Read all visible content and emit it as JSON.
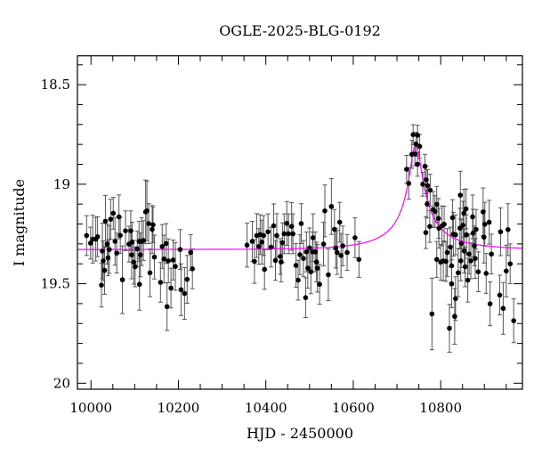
{
  "chart_data": {
    "type": "scatter",
    "title": "OGLE-2025-BLG-0192",
    "xlabel": "HJD - 2450000",
    "ylabel": "I magnitude",
    "xlim": [
      9969,
      10987
    ],
    "ylim": [
      20.03,
      18.355
    ],
    "y_inverted": true,
    "x_ticks": [
      10000,
      10200,
      10400,
      10600,
      10800
    ],
    "x_tick_labels": [
      "10000",
      "10200",
      "10400",
      "10600",
      "10800"
    ],
    "y_ticks": [
      18.5,
      19,
      19.5,
      20
    ],
    "y_tick_labels": [
      "18.5",
      "19",
      "19.5",
      "20"
    ],
    "grid": false,
    "colors": {
      "points": "#000000",
      "errorbars": "#555555",
      "model": "#ff00ff"
    },
    "model": {
      "t0": 10743,
      "u0": 0.1,
      "tE": 137,
      "fs": 0.0694,
      "base_mag": 19.328
    },
    "points": [
      [
        9990,
        19.258,
        0.1
      ],
      [
        9999,
        19.296,
        0.08
      ],
      [
        10004,
        19.276,
        0.12
      ],
      [
        10011,
        19.276,
        0.11
      ],
      [
        10015,
        19.264,
        0.1
      ],
      [
        10024,
        19.507,
        0.11
      ],
      [
        10026,
        19.336,
        0.14
      ],
      [
        10028,
        19.385,
        0.1
      ],
      [
        10031,
        19.433,
        0.12
      ],
      [
        10033,
        19.186,
        0.13
      ],
      [
        10037,
        19.301,
        0.1
      ],
      [
        10039,
        19.37,
        0.09
      ],
      [
        10042,
        19.328,
        0.12
      ],
      [
        10045,
        19.176,
        0.1
      ],
      [
        10051,
        19.146,
        0.08
      ],
      [
        10055,
        19.287,
        0.12
      ],
      [
        10059,
        19.346,
        0.1
      ],
      [
        10064,
        19.164,
        0.11
      ],
      [
        10067,
        19.257,
        0.09
      ],
      [
        10072,
        19.48,
        0.17
      ],
      [
        10079,
        19.234,
        0.1
      ],
      [
        10087,
        19.301,
        0.09
      ],
      [
        10091,
        19.234,
        0.1
      ],
      [
        10093,
        19.355,
        0.12
      ],
      [
        10094,
        19.291,
        0.1
      ],
      [
        10098,
        19.392,
        0.11
      ],
      [
        10101,
        19.415,
        0.1
      ],
      [
        10106,
        19.325,
        0.09
      ],
      [
        10110,
        19.287,
        0.1
      ],
      [
        10111,
        19.503,
        0.13
      ],
      [
        10113,
        19.355,
        0.11
      ],
      [
        10116,
        19.288,
        0.12
      ],
      [
        10120,
        19.283,
        0.1
      ],
      [
        10125,
        19.139,
        0.16
      ],
      [
        10128,
        19.134,
        0.15
      ],
      [
        10132,
        19.198,
        0.1
      ],
      [
        10135,
        19.445,
        0.12
      ],
      [
        10140,
        19.227,
        0.12
      ],
      [
        10142,
        19.204,
        0.09
      ],
      [
        10145,
        19.366,
        0.11
      ],
      [
        10159,
        19.493,
        0.1
      ],
      [
        10163,
        19.313,
        0.11
      ],
      [
        10167,
        19.376,
        0.12
      ],
      [
        10172,
        19.298,
        0.1
      ],
      [
        10174,
        19.615,
        0.12
      ],
      [
        10177,
        19.385,
        0.11
      ],
      [
        10183,
        19.522,
        0.1
      ],
      [
        10188,
        19.381,
        0.1
      ],
      [
        10193,
        19.413,
        0.12
      ],
      [
        10204,
        19.328,
        0.1
      ],
      [
        10206,
        19.53,
        0.13
      ],
      [
        10214,
        19.549,
        0.13
      ],
      [
        10220,
        19.478,
        0.12
      ],
      [
        10228,
        19.343,
        0.09
      ],
      [
        10232,
        19.425,
        0.1
      ],
      [
        10357,
        19.306,
        0.11
      ],
      [
        10369,
        19.287,
        0.1
      ],
      [
        10374,
        19.388,
        0.11
      ],
      [
        10379,
        19.258,
        0.11
      ],
      [
        10384,
        19.313,
        0.09
      ],
      [
        10387,
        19.253,
        0.1
      ],
      [
        10391,
        19.291,
        0.11
      ],
      [
        10395,
        19.258,
        0.1
      ],
      [
        10397,
        19.428,
        0.1
      ],
      [
        10405,
        19.239,
        0.09
      ],
      [
        10412,
        19.316,
        0.1
      ],
      [
        10418,
        19.209,
        0.11
      ],
      [
        10422,
        19.383,
        0.1
      ],
      [
        10425,
        19.258,
        0.11
      ],
      [
        10433,
        19.363,
        0.09
      ],
      [
        10435,
        19.391,
        0.1
      ],
      [
        10438,
        19.294,
        0.1
      ],
      [
        10442,
        19.249,
        0.1
      ],
      [
        10448,
        19.197,
        0.11
      ],
      [
        10452,
        19.249,
        0.1
      ],
      [
        10459,
        19.212,
        0.12
      ],
      [
        10462,
        19.249,
        0.1
      ],
      [
        10469,
        19.408,
        0.11
      ],
      [
        10474,
        19.482,
        0.1
      ],
      [
        10478,
        19.354,
        0.1
      ],
      [
        10481,
        19.198,
        0.1
      ],
      [
        10486,
        19.373,
        0.09
      ],
      [
        10491,
        19.57,
        0.1
      ],
      [
        10493,
        19.34,
        0.1
      ],
      [
        10496,
        19.422,
        0.1
      ],
      [
        10500,
        19.32,
        0.1
      ],
      [
        10503,
        19.44,
        0.11
      ],
      [
        10507,
        19.34,
        0.1
      ],
      [
        10508,
        19.269,
        0.12
      ],
      [
        10513,
        19.34,
        0.1
      ],
      [
        10516,
        19.391,
        0.1
      ],
      [
        10518,
        19.422,
        0.12
      ],
      [
        10523,
        19.503,
        0.1
      ],
      [
        10532,
        19.301,
        0.11
      ],
      [
        10535,
        19.134,
        0.13
      ],
      [
        10543,
        19.455,
        0.13
      ],
      [
        10550,
        19.112,
        0.14
      ],
      [
        10557,
        19.227,
        0.1
      ],
      [
        10560,
        19.321,
        0.1
      ],
      [
        10563,
        19.343,
        0.11
      ],
      [
        10569,
        19.191,
        0.1
      ],
      [
        10572,
        19.358,
        0.11
      ],
      [
        10576,
        19.31,
        0.1
      ],
      [
        10586,
        19.343,
        0.09
      ],
      [
        10604,
        19.269,
        0.1
      ],
      [
        10613,
        19.378,
        0.09
      ],
      [
        10722,
        18.925,
        0.07
      ],
      [
        10727,
        18.996,
        0.08
      ],
      [
        10734,
        18.85,
        0.07
      ],
      [
        10737,
        18.751,
        0.05
      ],
      [
        10741,
        18.848,
        0.06
      ],
      [
        10744,
        18.799,
        0.06
      ],
      [
        10747,
        18.754,
        0.05
      ],
      [
        10747,
        18.9,
        0.06
      ],
      [
        10752,
        18.81,
        0.06
      ],
      [
        10759,
        19.0,
        0.06
      ],
      [
        10764,
        18.91,
        0.06
      ],
      [
        10766,
        19.243,
        0.08
      ],
      [
        10767,
        18.978,
        0.07
      ],
      [
        10770,
        19.007,
        0.08
      ],
      [
        10769,
        19.1,
        0.07
      ],
      [
        10775,
        19.212,
        0.08
      ],
      [
        10776,
        19.03,
        0.08
      ],
      [
        10780,
        19.652,
        0.18
      ],
      [
        10783,
        19.127,
        0.09
      ],
      [
        10787,
        19.137,
        0.08
      ],
      [
        10791,
        19.101,
        0.09
      ],
      [
        10791,
        19.378,
        0.09
      ],
      [
        10795,
        19.172,
        0.1
      ],
      [
        10796,
        19.221,
        0.1
      ],
      [
        10800,
        19.392,
        0.09
      ],
      [
        10803,
        19.209,
        0.1
      ],
      [
        10806,
        19.385,
        0.1
      ],
      [
        10808,
        19.201,
        0.09
      ],
      [
        10812,
        19.388,
        0.1
      ],
      [
        10815,
        19.343,
        0.12
      ],
      [
        10820,
        19.724,
        0.12
      ],
      [
        10822,
        19.316,
        0.1
      ],
      [
        10825,
        19.5,
        0.12
      ],
      [
        10825,
        19.41,
        0.1
      ],
      [
        10827,
        19.168,
        0.09
      ],
      [
        10829,
        19.251,
        0.11
      ],
      [
        10832,
        19.664,
        0.14
      ],
      [
        10834,
        19.575,
        0.11
      ],
      [
        10834,
        19.254,
        0.1
      ],
      [
        10840,
        19.445,
        0.12
      ],
      [
        10844,
        19.221,
        0.1
      ],
      [
        10845,
        19.055,
        0.12
      ],
      [
        10846,
        19.385,
        0.1
      ],
      [
        10847,
        19.298,
        0.12
      ],
      [
        10851,
        19.206,
        0.12
      ],
      [
        10853,
        19.146,
        0.12
      ],
      [
        10854,
        19.336,
        0.11
      ],
      [
        10856,
        19.415,
        0.1
      ],
      [
        10858,
        19.124,
        0.1
      ],
      [
        10859,
        19.254,
        0.1
      ],
      [
        10862,
        19.482,
        0.11
      ],
      [
        10865,
        19.351,
        0.1
      ],
      [
        10869,
        19.385,
        0.09
      ],
      [
        10873,
        19.164,
        0.11
      ],
      [
        10874,
        19.246,
        0.12
      ],
      [
        10877,
        19.31,
        0.1
      ],
      [
        10879,
        19.373,
        0.1
      ],
      [
        10881,
        19.227,
        0.1
      ],
      [
        10886,
        19.44,
        0.1
      ],
      [
        10897,
        19.139,
        0.12
      ],
      [
        10899,
        19.266,
        0.13
      ],
      [
        10901,
        19.201,
        0.11
      ],
      [
        10904,
        19.448,
        0.1
      ],
      [
        10911,
        19.191,
        0.11
      ],
      [
        10913,
        19.601,
        0.11
      ],
      [
        10916,
        19.351,
        0.1
      ],
      [
        10935,
        19.557,
        0.1
      ],
      [
        10937,
        19.239,
        0.12
      ],
      [
        10943,
        19.624,
        0.13
      ],
      [
        10950,
        19.436,
        0.13
      ],
      [
        10954,
        19.228,
        0.13
      ],
      [
        10959,
        19.4,
        0.1
      ],
      [
        10967,
        19.686,
        0.11
      ]
    ]
  }
}
